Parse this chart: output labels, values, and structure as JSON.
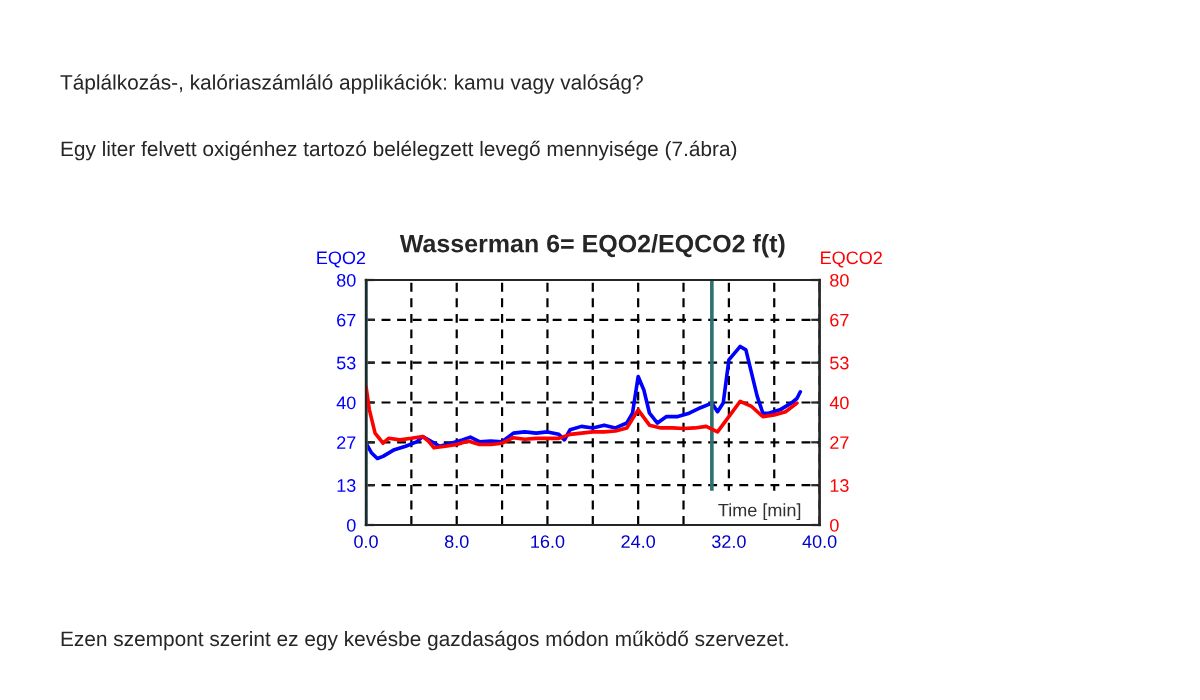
{
  "chart_data": {
    "type": "line",
    "title": "Wasserman 6= EQO2/EQCO2 f(t)",
    "xlabel": "Time [min]",
    "ylabel": "EQO2",
    "y2label": "EQCO2",
    "annotations": [
      "Táplálkozás-, kalóriaszámláló applikációk: kamu vagy valóság?",
      "Egy liter felvett oxigénhez tartozó belélegzett levegő mennyisége (7.ábra)",
      "Ezen szempont szerint ez egy kevésbe gazdaságos módon működő szervezet."
    ],
    "xlim": [
      0,
      40
    ],
    "xticks": [
      {
        "value": 0,
        "label": "0.0"
      },
      {
        "value": 4,
        "label": null
      },
      {
        "value": 8,
        "label": "8.0"
      },
      {
        "value": 12,
        "label": null
      },
      {
        "value": 16,
        "label": "16.0"
      },
      {
        "value": 20,
        "label": null
      },
      {
        "value": 24,
        "label": "24.0"
      },
      {
        "value": 28,
        "label": null
      },
      {
        "value": 32,
        "label": "32.0"
      },
      {
        "value": 36,
        "label": null
      },
      {
        "value": 40,
        "label": "40.0"
      }
    ],
    "ylim": [
      0,
      80
    ],
    "yticks": [
      0,
      13,
      27,
      40,
      53,
      67,
      80
    ],
    "y2lim": [
      0,
      80
    ],
    "y2ticks": [
      0,
      13,
      27,
      40,
      53,
      67,
      80
    ],
    "grid": true,
    "line_style": "solid",
    "ref_lines": [
      {
        "axis": "x",
        "value": 0,
        "color": "#2f7070"
      },
      {
        "axis": "x",
        "value": 30.5,
        "color": "#2f7070"
      }
    ],
    "series": [
      {
        "color": "#0000ff",
        "x": [
          0,
          0.5,
          1,
          1.5,
          2.5,
          3.5,
          4.5,
          5,
          5.7,
          6.5,
          7.5,
          8.5,
          9.2,
          10,
          11,
          12,
          13,
          14,
          15,
          16,
          17,
          17.5,
          18,
          19,
          20,
          21,
          22,
          23,
          23.5,
          24,
          24.5,
          25,
          25.7,
          26.5,
          27.5,
          28.5,
          29.5,
          30.5,
          31,
          31.5,
          32,
          32.5,
          33,
          33.5,
          34,
          34.5,
          35,
          35.5,
          36.5,
          37.5,
          38,
          38.3
        ],
        "values": [
          26.7,
          23.5,
          21.7,
          22.4,
          24.6,
          25.7,
          27.2,
          28.9,
          27.4,
          25.7,
          26.7,
          27.8,
          28.7,
          27.2,
          27.4,
          27.2,
          30,
          30.4,
          30,
          30.4,
          29.6,
          27.8,
          31.1,
          32.2,
          31.7,
          32.6,
          31.7,
          33.3,
          36.5,
          48.5,
          44.1,
          36.5,
          33.3,
          35.4,
          35.4,
          36.5,
          38.3,
          39.8,
          37,
          39.8,
          53.9,
          56.1,
          58.3,
          57.2,
          49.6,
          42,
          36.5,
          36.5,
          37.6,
          39.8,
          41.3,
          43.5
        ]
      },
      {
        "color": "#ff0000",
        "axis": "y2",
        "x": [
          0,
          0.3,
          0.8,
          1.5,
          2,
          3,
          4,
          5,
          5.5,
          6,
          7,
          8,
          9,
          10,
          11,
          12,
          13,
          14,
          15,
          16,
          17,
          18,
          19,
          20,
          21,
          22,
          23,
          24,
          25,
          26,
          27,
          28,
          29,
          30,
          31,
          32,
          33,
          34,
          35,
          36,
          37,
          38
        ],
        "values": [
          45.2,
          37.6,
          30,
          26.7,
          28.3,
          27.8,
          28.3,
          28.9,
          27.4,
          25.2,
          25.7,
          26.3,
          27.4,
          26.3,
          26.3,
          26.7,
          28.5,
          28,
          28.3,
          28.3,
          28.3,
          29.6,
          30,
          30.4,
          30.4,
          30.7,
          31.7,
          37.6,
          32.6,
          31.7,
          31.7,
          31.5,
          31.7,
          32.2,
          30.4,
          35.4,
          40.4,
          38.7,
          35.4,
          35.9,
          37,
          39.8
        ]
      }
    ]
  }
}
